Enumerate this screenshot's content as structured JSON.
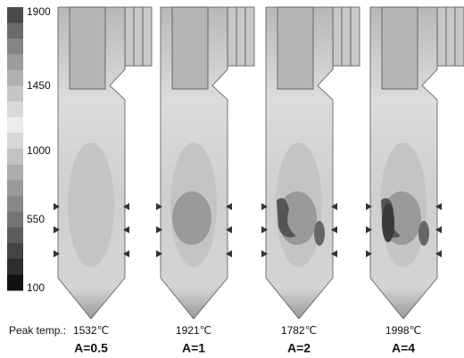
{
  "colorbar": {
    "ticks": [
      "1900",
      "1450",
      "1000",
      "550",
      "100"
    ]
  },
  "peak_label": "Peak temp.:",
  "panels": [
    {
      "peak": "1532℃",
      "label": "A=0.5"
    },
    {
      "peak": "1921℃",
      "label": "A=1"
    },
    {
      "peak": "1782℃",
      "label": "A=2"
    },
    {
      "peak": "1998℃",
      "label": "A=4"
    }
  ]
}
